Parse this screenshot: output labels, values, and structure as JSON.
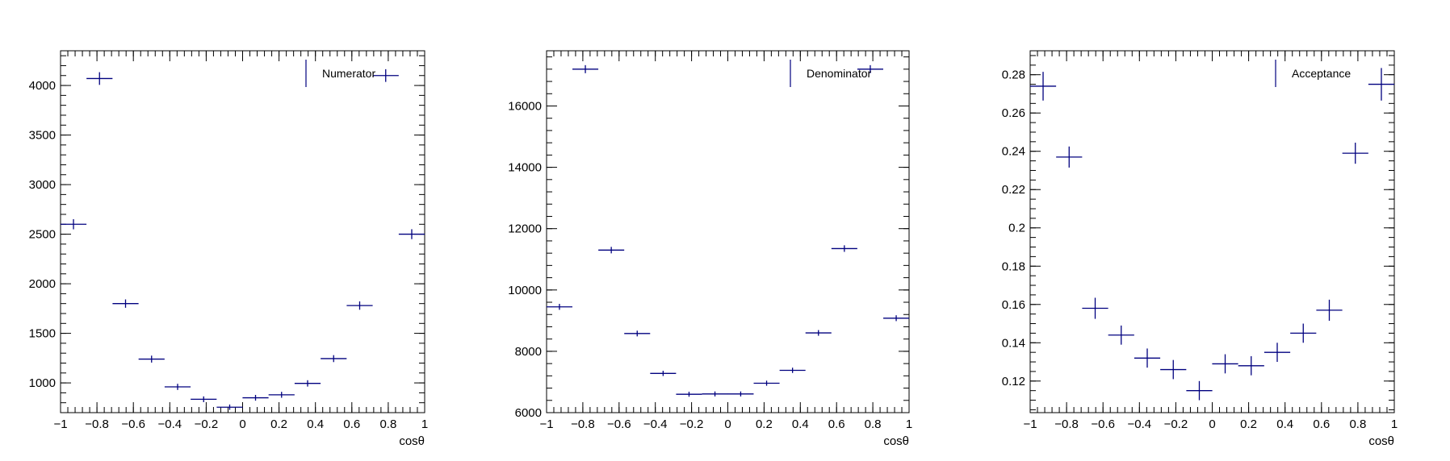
{
  "marker_color": "#00007f",
  "axis_color": "#000000",
  "chart_data": [
    {
      "type": "scatter",
      "xlabel": "cosθ",
      "xlim": [
        -1,
        1
      ],
      "ylim": [
        700,
        4350
      ],
      "x_ticks": [
        -1,
        -0.8,
        -0.6,
        -0.4,
        -0.2,
        0,
        0.2,
        0.4,
        0.6,
        0.8,
        1
      ],
      "x_tick_labels": [
        "−1",
        "−0.8",
        "−0.6",
        "−0.4",
        "−0.2",
        "0",
        "0.2",
        "0.4",
        "0.6",
        "0.8",
        "1"
      ],
      "y_ticks": [
        1000,
        1500,
        2000,
        2500,
        3000,
        3500,
        4000
      ],
      "y_tick_labels": [
        "1000",
        "1500",
        "2000",
        "2500",
        "3000",
        "3500",
        "4000"
      ],
      "y_minor_step": 100,
      "legend": {
        "label": "Numerator",
        "placement": "top-right"
      },
      "series": [
        {
          "name": "Numerator",
          "bin_half_width": 0.0714,
          "x": [
            -0.929,
            -0.786,
            -0.643,
            -0.5,
            -0.357,
            -0.214,
            -0.071,
            0.071,
            0.214,
            0.357,
            0.5,
            0.643,
            0.786,
            0.929
          ],
          "y": [
            2600,
            4070,
            1800,
            1240,
            960,
            835,
            755,
            850,
            880,
            995,
            1245,
            1780,
            4100,
            2500
          ],
          "yerr": [
            51,
            64,
            42,
            35,
            31,
            29,
            27,
            29,
            30,
            32,
            35,
            42,
            64,
            50
          ]
        }
      ]
    },
    {
      "type": "scatter",
      "xlabel": "cosθ",
      "xlim": [
        -1,
        1
      ],
      "ylim": [
        6000,
        17800
      ],
      "x_ticks": [
        -1,
        -0.8,
        -0.6,
        -0.4,
        -0.2,
        0,
        0.2,
        0.4,
        0.6,
        0.8,
        1
      ],
      "x_tick_labels": [
        "−1",
        "−0.8",
        "−0.6",
        "−0.4",
        "−0.2",
        "0",
        "0.2",
        "0.4",
        "0.6",
        "0.8",
        "1"
      ],
      "y_ticks": [
        6000,
        8000,
        10000,
        12000,
        14000,
        16000
      ],
      "y_tick_labels": [
        "6000",
        "8000",
        "10000",
        "12000",
        "14000",
        "16000"
      ],
      "y_minor_step": 400,
      "legend": {
        "label": "Denominator",
        "placement": "top-right"
      },
      "series": [
        {
          "name": "Denominator",
          "bin_half_width": 0.0714,
          "x": [
            -0.929,
            -0.786,
            -0.643,
            -0.5,
            -0.357,
            -0.214,
            -0.071,
            0.071,
            0.214,
            0.357,
            0.5,
            0.643,
            0.786,
            0.929
          ],
          "y": [
            9450,
            17200,
            11300,
            8580,
            7280,
            6600,
            6610,
            6610,
            6960,
            7380,
            8600,
            11350,
            17200,
            9080
          ],
          "yerr": [
            97,
            131,
            106,
            93,
            85,
            81,
            81,
            81,
            83,
            86,
            93,
            107,
            131,
            95
          ]
        }
      ]
    },
    {
      "type": "scatter",
      "xlabel": "cosθ",
      "xlim": [
        -1,
        1
      ],
      "ylim": [
        0.1035,
        0.2925
      ],
      "x_ticks": [
        -1,
        -0.8,
        -0.6,
        -0.4,
        -0.2,
        0,
        0.2,
        0.4,
        0.6,
        0.8,
        1
      ],
      "x_tick_labels": [
        "−1",
        "−0.8",
        "−0.6",
        "−0.4",
        "−0.2",
        "0",
        "0.2",
        "0.4",
        "0.6",
        "0.8",
        "1"
      ],
      "y_ticks": [
        0.12,
        0.14,
        0.16,
        0.18,
        0.2,
        0.22,
        0.24,
        0.26,
        0.28
      ],
      "y_tick_labels": [
        "0.12",
        "0.14",
        "0.16",
        "0.18",
        "0.2",
        "0.22",
        "0.24",
        "0.26",
        "0.28"
      ],
      "y_minor_step": 0.005,
      "legend": {
        "label": "Acceptance",
        "placement": "top-right"
      },
      "series": [
        {
          "name": "Acceptance",
          "bin_half_width": 0.0714,
          "x": [
            -0.929,
            -0.786,
            -0.643,
            -0.5,
            -0.357,
            -0.214,
            -0.071,
            0.071,
            0.214,
            0.357,
            0.5,
            0.643,
            0.786,
            0.929
          ],
          "y": [
            0.274,
            0.237,
            0.158,
            0.144,
            0.132,
            0.126,
            0.115,
            0.129,
            0.128,
            0.135,
            0.145,
            0.157,
            0.239,
            0.275
          ],
          "yerr": [
            0.0075,
            0.0055,
            0.0055,
            0.005,
            0.005,
            0.005,
            0.005,
            0.005,
            0.005,
            0.005,
            0.005,
            0.0055,
            0.0055,
            0.0085
          ]
        }
      ]
    }
  ]
}
